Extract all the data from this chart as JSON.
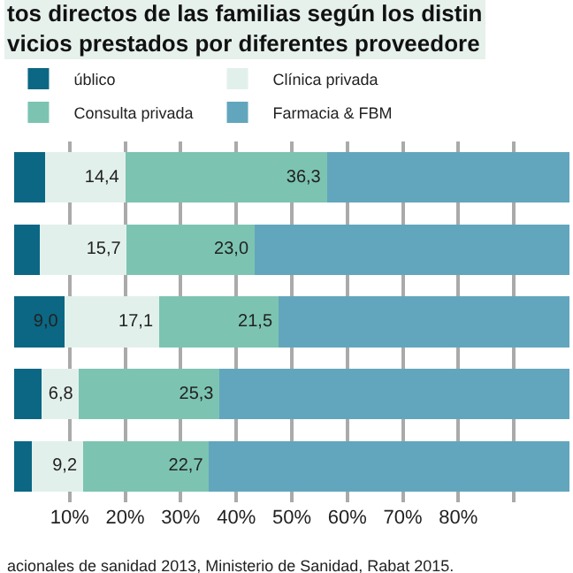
{
  "chart_data": {
    "type": "bar",
    "orientation": "horizontal",
    "stacked": true,
    "title": "tos directos de las familias según los distin\nvicios prestados por diferentes proveedore",
    "categories": [
      null,
      null,
      null,
      null,
      null
    ],
    "series": [
      {
        "name": "úblico",
        "color": "#0b6783",
        "values": [
          5.6,
          4.6,
          9.0,
          4.9,
          3.2
        ],
        "value_labels": [
          null,
          null,
          "9,0",
          null,
          null
        ]
      },
      {
        "name": "Clínica privada",
        "color": "#e2f0eb",
        "values": [
          14.4,
          15.7,
          17.1,
          6.8,
          9.2
        ],
        "value_labels": [
          "14,4",
          "15,7",
          "17,1",
          "6,8",
          "9,2"
        ]
      },
      {
        "name": "Consulta privada",
        "color": "#7cc4b1",
        "values": [
          36.3,
          23.0,
          21.5,
          25.3,
          22.7
        ],
        "value_labels": [
          "36,3",
          "23,0",
          "21,5",
          "25,3",
          "22,7"
        ]
      },
      {
        "name": "Farmacia & FBM",
        "color": "#62a6bd",
        "values": [
          43.7,
          56.7,
          52.4,
          63.0,
          64.9
        ],
        "value_labels": [
          null,
          null,
          null,
          null,
          null
        ]
      }
    ],
    "xlim": [
      0,
      100
    ],
    "xticks": [
      {
        "value": 10,
        "label": "10%"
      },
      {
        "value": 20,
        "label": "20%"
      },
      {
        "value": 30,
        "label": "30%"
      },
      {
        "value": 40,
        "label": "40%"
      },
      {
        "value": 50,
        "label": "50%"
      },
      {
        "value": 60,
        "label": "60%"
      },
      {
        "value": 70,
        "label": "70%"
      },
      {
        "value": 80,
        "label": "80%"
      },
      {
        "value": 90,
        "label": null
      }
    ],
    "grid": "x",
    "legend": "top",
    "tick_labels": "x",
    "annotations": [
      "acionales de sanidad 2013, Ministerio de Sanidad, Rabat 2015."
    ]
  }
}
